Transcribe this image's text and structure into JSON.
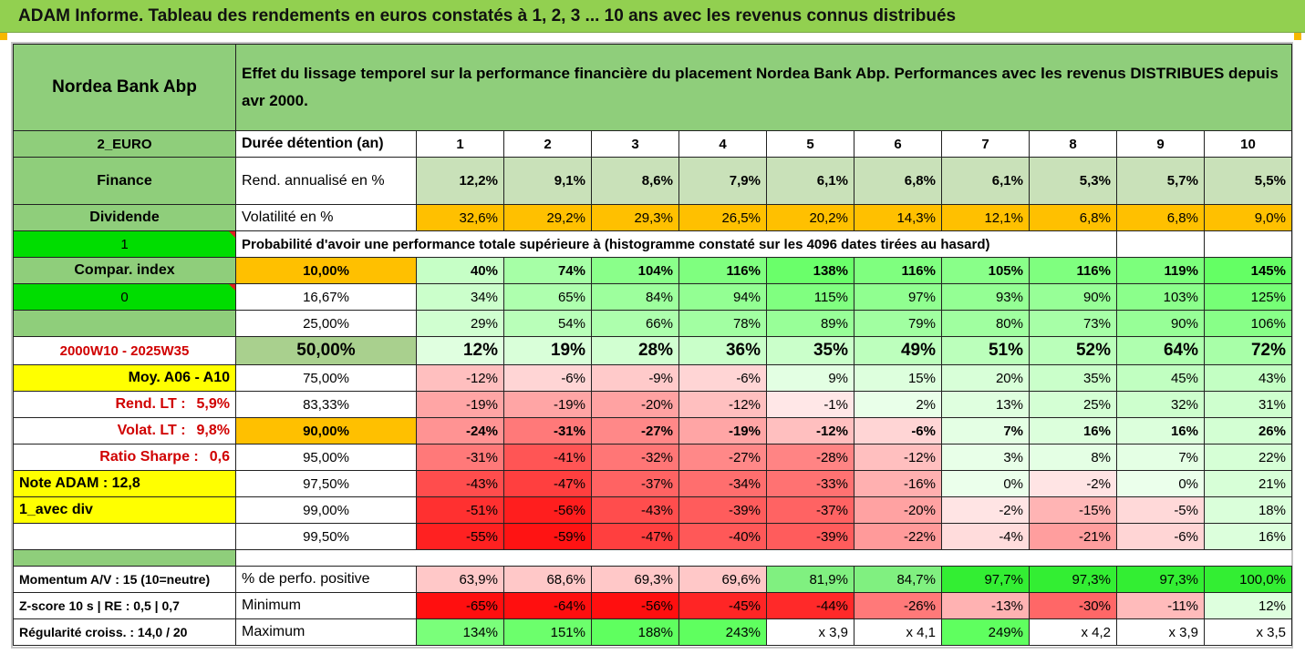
{
  "banner": "ADAM Informe. Tableau des rendements en euros constatés à 1, 2, 3 ... 10 ans avec les revenus connus distribués",
  "colors": {
    "header_green": "#8fce7b",
    "pale_green": "#c9e1b9",
    "orange": "#ffc000",
    "yellow": "#ffff00",
    "bright_green": "#00dd00",
    "accent_red": "#d00000"
  },
  "side": {
    "title": "Nordea Bank Abp",
    "currency": "2_EURO",
    "sector": "Finance",
    "div_label": "Dividende",
    "flag1": "1",
    "compar_label": "Compar. index",
    "flag0": "0",
    "period": "2000W10 - 2025W35",
    "moy": "Moy. A06 - A10",
    "rend_lt": {
      "label": "Rend. LT :",
      "value": "5,9%"
    },
    "volat_lt": {
      "label": "Volat. LT :",
      "value": "9,8%"
    },
    "sharpe": {
      "label": "Ratio Sharpe :",
      "value": "0,6"
    },
    "note": "Note ADAM : 12,8",
    "avec_div": "1_avec div",
    "momentum": "Momentum A/V : 15 (10=neutre)",
    "zscore": "Z-score 10 s  |  RE : 0,5  |  0,7",
    "regularite": "Régularité croiss. : 14,0 / 20"
  },
  "header": {
    "desc": "Effet du lissage temporel sur la performance financière du placement Nordea Bank Abp. Performances avec les revenus DISTRIBUES depuis avr 2000.",
    "duree_label": "Durée détention (an)",
    "years": [
      "1",
      "2",
      "3",
      "4",
      "5",
      "6",
      "7",
      "8",
      "9",
      "10"
    ]
  },
  "rend": {
    "label": "Rend. annualisé en %",
    "values": [
      "12,2%",
      "9,1%",
      "8,6%",
      "7,9%",
      "6,1%",
      "6,8%",
      "6,1%",
      "5,3%",
      "5,7%",
      "5,5%"
    ]
  },
  "volat": {
    "label": "Volatilité en %",
    "values": [
      "32,6%",
      "29,2%",
      "29,3%",
      "26,5%",
      "20,2%",
      "14,3%",
      "12,1%",
      "6,8%",
      "6,8%",
      "9,0%"
    ]
  },
  "prob_title": "Probabilité d'avoir une performance totale supérieure à (histogramme constaté sur les 4096 dates tirées au hasard)",
  "prob_rows": [
    {
      "pct": "10,00%",
      "values": [
        "40%",
        "74%",
        "104%",
        "116%",
        "138%",
        "116%",
        "105%",
        "116%",
        "119%",
        "145%"
      ]
    },
    {
      "pct": "16,67%",
      "values": [
        "34%",
        "65%",
        "84%",
        "94%",
        "115%",
        "97%",
        "93%",
        "90%",
        "103%",
        "125%"
      ]
    },
    {
      "pct": "25,00%",
      "values": [
        "29%",
        "54%",
        "66%",
        "78%",
        "89%",
        "79%",
        "80%",
        "73%",
        "90%",
        "106%"
      ]
    },
    {
      "pct": "50,00%",
      "values": [
        "12%",
        "19%",
        "28%",
        "36%",
        "35%",
        "49%",
        "51%",
        "52%",
        "64%",
        "72%"
      ]
    },
    {
      "pct": "75,00%",
      "values": [
        "-12%",
        "-6%",
        "-9%",
        "-6%",
        "9%",
        "15%",
        "20%",
        "35%",
        "45%",
        "43%"
      ]
    },
    {
      "pct": "83,33%",
      "values": [
        "-19%",
        "-19%",
        "-20%",
        "-12%",
        "-1%",
        "2%",
        "13%",
        "25%",
        "32%",
        "31%"
      ]
    },
    {
      "pct": "90,00%",
      "values": [
        "-24%",
        "-31%",
        "-27%",
        "-19%",
        "-12%",
        "-6%",
        "7%",
        "16%",
        "16%",
        "26%"
      ]
    },
    {
      "pct": "95,00%",
      "values": [
        "-31%",
        "-41%",
        "-32%",
        "-27%",
        "-28%",
        "-12%",
        "3%",
        "8%",
        "7%",
        "22%"
      ]
    },
    {
      "pct": "97,50%",
      "values": [
        "-43%",
        "-47%",
        "-37%",
        "-34%",
        "-33%",
        "-16%",
        "0%",
        "-2%",
        "0%",
        "21%"
      ]
    },
    {
      "pct": "99,00%",
      "values": [
        "-51%",
        "-56%",
        "-43%",
        "-39%",
        "-37%",
        "-20%",
        "-2%",
        "-15%",
        "-5%",
        "18%"
      ]
    },
    {
      "pct": "99,50%",
      "values": [
        "-55%",
        "-59%",
        "-47%",
        "-40%",
        "-39%",
        "-22%",
        "-4%",
        "-21%",
        "-6%",
        "16%"
      ]
    }
  ],
  "perf_pos": {
    "label": "% de perfo. positive",
    "values": [
      "63,9%",
      "68,6%",
      "69,3%",
      "69,6%",
      "81,9%",
      "84,7%",
      "97,7%",
      "97,3%",
      "97,3%",
      "100,0%"
    ]
  },
  "minimum": {
    "label": "Minimum",
    "values": [
      "-65%",
      "-64%",
      "-56%",
      "-45%",
      "-44%",
      "-26%",
      "-13%",
      "-30%",
      "-11%",
      "12%"
    ]
  },
  "maximum": {
    "label": "Maximum",
    "values": [
      "134%",
      "151%",
      "188%",
      "243%",
      "x 3,9",
      "x 4,1",
      "249%",
      "x 4,2",
      "x 3,9",
      "x 3,5"
    ]
  }
}
